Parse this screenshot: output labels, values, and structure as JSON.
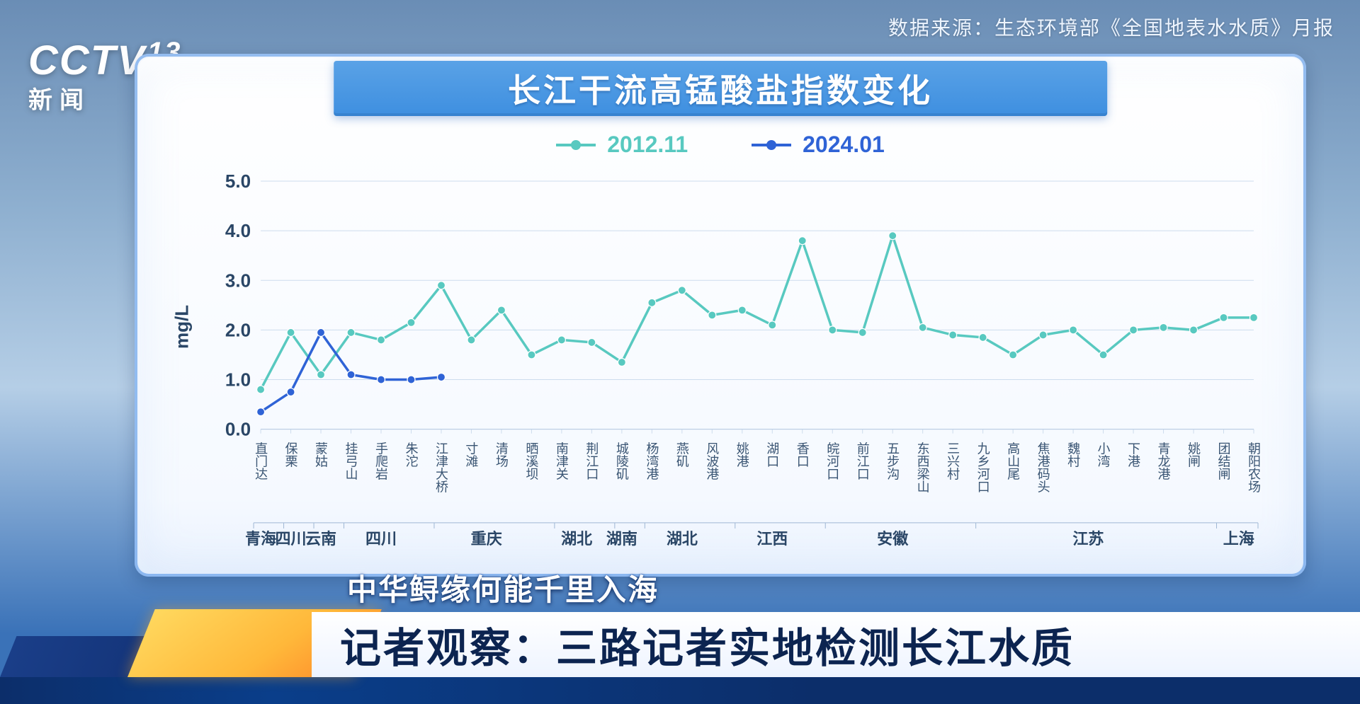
{
  "source_line": "数据来源：生态环境部《全国地表水水质》月报",
  "logo": {
    "main": "CCTV",
    "num": "13",
    "sub": "新闻"
  },
  "panel": {
    "title": "长江干流高锰酸盐指数变化",
    "title_bg_top": "#5aa2e6",
    "title_bg_bottom": "#3e8fe0",
    "background_color": "#ffffff",
    "border_color": "#468CE6"
  },
  "chart": {
    "type": "line",
    "ylabel": "mg/L",
    "ylim": [
      0,
      5
    ],
    "ytick_step": 1.0,
    "yticks": [
      "0.0",
      "1.0",
      "2.0",
      "3.0",
      "4.0",
      "5.0"
    ],
    "grid_color": "#cddced",
    "label_color": "#2a4666",
    "label_fontsize": 26,
    "xlabel_fontsize": 18,
    "categories": [
      "直门达",
      "保栗",
      "蒙姑",
      "挂弓山",
      "手爬岩",
      "朱沱",
      "江津大桥",
      "寸滩",
      "清场",
      "晒溪坝",
      "南津关",
      "荆江口",
      "城陵矶",
      "杨湾港",
      "燕矶",
      "风波港",
      "姚港",
      "湖口",
      "香口",
      "皖河口",
      "前江口",
      "五步沟",
      "东西梁山",
      "三兴村",
      "九乡河口",
      "高山尾",
      "焦港码头",
      "魏村",
      "小湾",
      "下港",
      "青龙港",
      "姚闸",
      "团结闸",
      "朝阳农场"
    ],
    "province_groups": [
      {
        "label": "青海",
        "start": 0,
        "end": 0
      },
      {
        "label": "四川",
        "start": 1,
        "end": 1
      },
      {
        "label": "云南",
        "start": 2,
        "end": 2
      },
      {
        "label": "四川",
        "start": 3,
        "end": 5
      },
      {
        "label": "重庆",
        "start": 6,
        "end": 9
      },
      {
        "label": "湖北",
        "start": 10,
        "end": 11
      },
      {
        "label": "湖南",
        "start": 12,
        "end": 12
      },
      {
        "label": "湖北",
        "start": 13,
        "end": 15
      },
      {
        "label": "江西",
        "start": 16,
        "end": 18
      },
      {
        "label": "安徽",
        "start": 19,
        "end": 23
      },
      {
        "label": "江苏",
        "start": 24,
        "end": 31
      },
      {
        "label": "上海",
        "start": 32,
        "end": 33
      }
    ],
    "series": [
      {
        "name": "2012.11",
        "color": "#58c9c0",
        "line_width": 3.5,
        "marker": "circle",
        "marker_size": 5.5,
        "values": [
          0.8,
          1.95,
          1.1,
          1.95,
          1.8,
          2.15,
          2.9,
          1.8,
          2.4,
          1.5,
          1.8,
          1.75,
          1.35,
          2.55,
          2.8,
          2.3,
          2.4,
          2.1,
          3.8,
          2.0,
          1.95,
          3.9,
          2.05,
          1.9,
          1.85,
          1.5,
          1.9,
          2.0,
          1.5,
          2.0,
          2.05,
          2.0,
          2.25,
          2.25
        ]
      },
      {
        "name": "2024.01",
        "color": "#2f63d6",
        "line_width": 4,
        "marker": "circle",
        "marker_size": 6,
        "values": [
          0.35,
          0.75,
          1.95,
          1.1,
          1.0,
          1.0,
          1.05
        ]
      }
    ]
  },
  "lower_third": {
    "top_line": "中华鲟缘何能千里入海",
    "main_line": "记者观察：三路记者实地检测长江水质",
    "accent_color_1": "#1a3e88",
    "accent_color_2_from": "#ffd85e",
    "accent_color_2_to": "#ff8a2a",
    "text_color": "#0c2450"
  }
}
